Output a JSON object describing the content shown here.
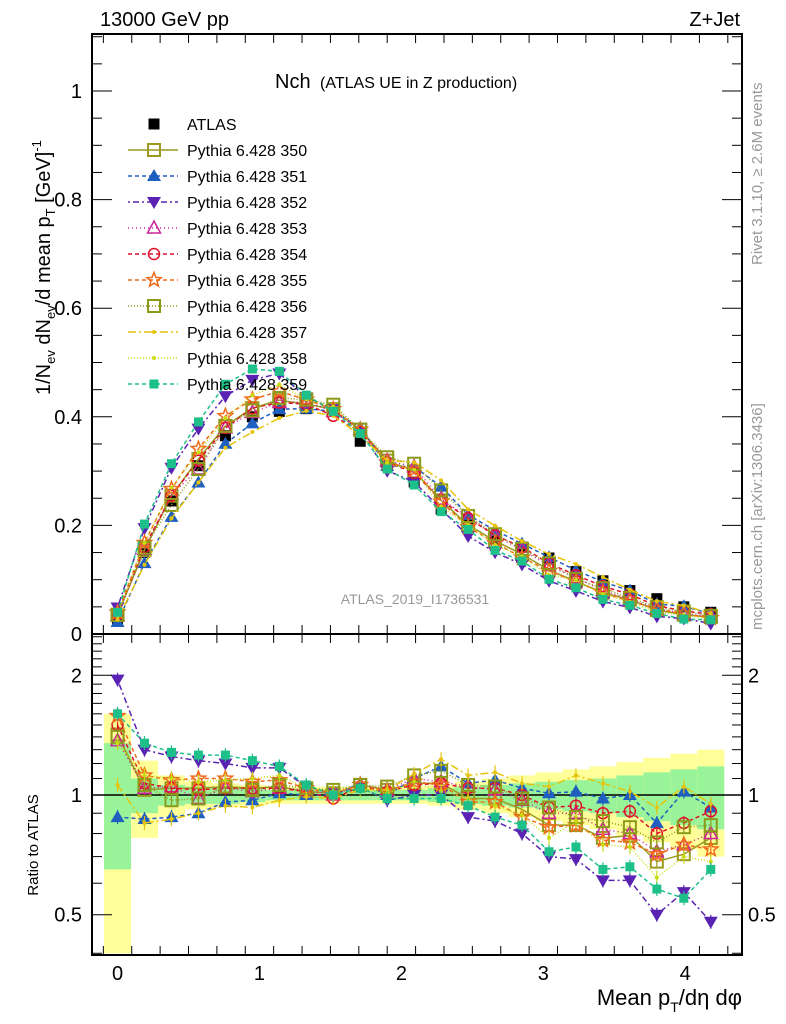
{
  "header": {
    "left_label": "13000 GeV pp",
    "right_label": "Z+Jet"
  },
  "side_labels": {
    "rivet": "Rivet 3.1.10, ≥ 2.6M events",
    "mcplots": "mcplots.cern.ch [arXiv:1306.3436]"
  },
  "watermark": "ATLAS_2019_I1736531",
  "chart_data": {
    "type": "line",
    "title": "Nch",
    "subtitle": "(ATLAS UE in Z production)",
    "xlabel": "Mean pT/dη dφ",
    "ylabel": "1/Nev dNev/d mean pT [GeV]^-1",
    "ratio_ylabel": "Ratio to ATLAS",
    "xlim": [
      -0.18,
      4.4
    ],
    "ylim": [
      0,
      1.105
    ],
    "ratio_ylim": [
      0.396,
      2.54
    ],
    "ratio_scale": "log",
    "grid": false,
    "legend_position": "top-left",
    "xticks": [
      0,
      1,
      2,
      3,
      4
    ],
    "xtick_labels": [
      "0",
      "1",
      "2",
      "3",
      "4"
    ],
    "yticks": [
      0,
      0.2,
      0.4,
      0.6,
      0.8,
      1
    ],
    "ytick_labels": [
      "0",
      "0.2",
      "0.4",
      "0.6",
      "0.8",
      "1"
    ],
    "ratio_yticks": [
      0.5,
      1,
      2
    ],
    "ratio_ytick_labels": [
      "0.5",
      "1",
      "2"
    ],
    "x": [
      0,
      0.19,
      0.38,
      0.57,
      0.76,
      0.95,
      1.14,
      1.33,
      1.52,
      1.71,
      1.9,
      2.09,
      2.28,
      2.47,
      2.66,
      2.85,
      3.04,
      3.23,
      3.42,
      3.61,
      3.8,
      3.99,
      4.18
    ],
    "reference": {
      "name": "ATLAS",
      "values": [
        0.025,
        0.15,
        0.245,
        0.31,
        0.365,
        0.4,
        0.41,
        0.415,
        0.41,
        0.355,
        0.31,
        0.28,
        0.23,
        0.205,
        0.175,
        0.16,
        0.14,
        0.115,
        0.098,
        0.08,
        0.065,
        0.05,
        0.04
      ],
      "band_inner": [
        0.35,
        0.1,
        0.06,
        0.05,
        0.05,
        0.04,
        0.03,
        0.03,
        0.03,
        0.03,
        0.03,
        0.03,
        0.04,
        0.05,
        0.06,
        0.07,
        0.08,
        0.09,
        0.1,
        0.12,
        0.14,
        0.16,
        0.18
      ],
      "band_outer": [
        0.6,
        0.22,
        0.12,
        0.08,
        0.07,
        0.06,
        0.05,
        0.05,
        0.05,
        0.05,
        0.05,
        0.05,
        0.06,
        0.08,
        0.1,
        0.12,
        0.14,
        0.16,
        0.18,
        0.21,
        0.24,
        0.27,
        0.3
      ]
    },
    "series": [
      {
        "name": "Pythia 6.428 350",
        "color": "#9a9a1e",
        "marker": "open-square",
        "dash": "solid",
        "ratio": [
          1.42,
          1.03,
          1.04,
          1.04,
          1.05,
          1.04,
          1.05,
          1.02,
          1.01,
          1.06,
          1.03,
          1.07,
          1.07,
          0.98,
          0.98,
          0.92,
          0.84,
          0.84,
          0.78,
          0.79,
          0.68,
          0.71,
          0.78
        ]
      },
      {
        "name": "Pythia 6.428 351",
        "color": "#1f5fbf",
        "marker": "filled-triangle-up",
        "dash": "4,3",
        "ratio": [
          0.88,
          0.87,
          0.88,
          0.9,
          0.96,
          0.97,
          1.01,
          1.0,
          1.0,
          1.07,
          1.0,
          1.1,
          1.18,
          1.07,
          1.09,
          1.04,
          1.01,
          1.02,
          0.98,
          1.0,
          0.85,
          1.02,
          0.93
        ]
      },
      {
        "name": "Pythia 6.428 352",
        "color": "#5a22b3",
        "marker": "filled-triangle-down",
        "dash": "2,3,6,3",
        "ratio": [
          1.95,
          1.3,
          1.25,
          1.22,
          1.2,
          1.17,
          1.17,
          1.05,
          1.01,
          1.05,
          0.97,
          1.0,
          1.0,
          0.88,
          0.86,
          0.8,
          0.7,
          0.69,
          0.61,
          0.61,
          0.5,
          0.57,
          0.48
        ]
      },
      {
        "name": "Pythia 6.428 353",
        "color": "#cc2299",
        "marker": "open-triangle-up",
        "dash": "1,3",
        "ratio": [
          1.37,
          1.04,
          1.05,
          0.98,
          1.04,
          1.02,
          1.04,
          1.03,
          1.0,
          1.06,
          1.03,
          1.1,
          1.08,
          1.05,
          1.03,
          0.97,
          0.9,
          0.9,
          0.82,
          0.8,
          0.72,
          0.75,
          0.8
        ]
      },
      {
        "name": "Pythia 6.428 354",
        "color": "#e0102a",
        "marker": "open-circle",
        "dash": "4,3",
        "ratio": [
          1.5,
          1.07,
          1.04,
          1.03,
          1.04,
          1.04,
          1.04,
          1.02,
          0.98,
          1.05,
          1.02,
          1.06,
          1.07,
          1.04,
          1.04,
          1.0,
          0.93,
          0.94,
          0.9,
          0.91,
          0.8,
          0.85,
          0.91
        ]
      },
      {
        "name": "Pythia 6.428 355",
        "color": "#f06a1a",
        "marker": "open-star",
        "dash": "4,3",
        "ratio": [
          1.58,
          1.12,
          1.09,
          1.1,
          1.1,
          1.08,
          1.09,
          1.04,
          1.01,
          1.06,
          1.02,
          1.08,
          1.06,
          0.96,
          0.96,
          0.88,
          0.83,
          0.84,
          0.77,
          0.76,
          0.71,
          0.75,
          0.73
        ]
      },
      {
        "name": "Pythia 6.428 356",
        "color": "#8c9a1a",
        "marker": "open-square",
        "dash": "1,2",
        "ratio": [
          1.4,
          1.06,
          0.97,
          0.98,
          1.05,
          1.03,
          1.06,
          1.04,
          1.03,
          1.06,
          1.05,
          1.12,
          1.15,
          1.06,
          1.05,
          0.98,
          0.93,
          0.88,
          0.86,
          0.83,
          0.76,
          0.83,
          0.84
        ]
      },
      {
        "name": "Pythia 6.428 357",
        "color": "#e6c40c",
        "marker": "dot",
        "dash": "8,3,2,3",
        "ratio": [
          1.06,
          0.85,
          0.87,
          0.9,
          0.94,
          0.93,
          0.97,
          0.99,
          0.98,
          1.03,
          1.03,
          1.13,
          1.23,
          1.12,
          1.14,
          1.07,
          1.05,
          1.12,
          1.07,
          1.02,
          0.93,
          1.05,
          0.95
        ]
      },
      {
        "name": "Pythia 6.428 358",
        "color": "#c8dc10",
        "marker": "dot",
        "dash": "1,2",
        "ratio": [
          1.35,
          1.12,
          1.1,
          1.08,
          1.09,
          1.1,
          1.12,
          1.04,
          1.02,
          1.04,
          1.01,
          1.08,
          1.02,
          0.98,
          0.94,
          0.89,
          0.78,
          0.86,
          0.75,
          0.74,
          0.62,
          0.7,
          0.68
        ]
      },
      {
        "name": "Pythia 6.428 359",
        "color": "#1ec08a",
        "marker": "filled-square",
        "dash": "4,3",
        "ratio": [
          1.6,
          1.35,
          1.28,
          1.26,
          1.26,
          1.22,
          1.18,
          1.06,
          1.0,
          1.04,
          0.98,
          0.98,
          0.98,
          0.94,
          0.88,
          0.84,
          0.72,
          0.74,
          0.65,
          0.66,
          0.58,
          0.55,
          0.65
        ]
      }
    ]
  }
}
